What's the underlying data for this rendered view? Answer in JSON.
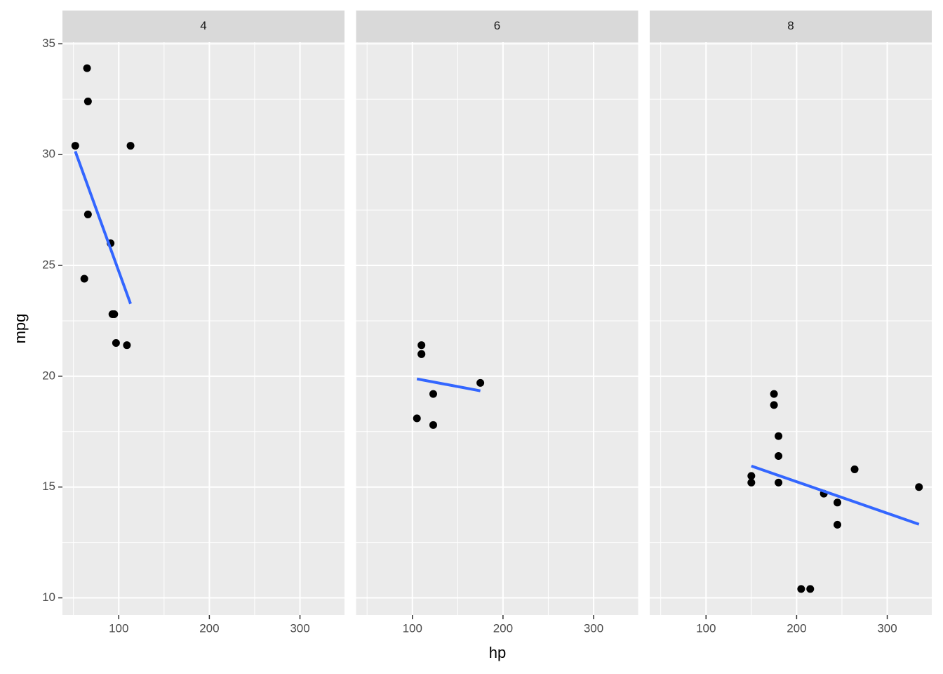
{
  "chart_data": {
    "type": "scatter",
    "x_label": "hp",
    "y_label": "mpg",
    "xlim": [
      37.85,
      349.15
    ],
    "ylim": [
      9.225,
      35.075
    ],
    "xticks": [
      100,
      200,
      300
    ],
    "yticks": [
      10,
      15,
      20,
      25,
      30,
      35
    ],
    "xminor": [
      50,
      150,
      250
    ],
    "yminor": [
      12.5,
      17.5,
      22.5,
      27.5,
      32.5
    ],
    "grid": true,
    "color": "#000000",
    "fit_color": "#3366ff",
    "panels": [
      {
        "title": "4",
        "x": [
          93,
          62,
          95,
          66,
          52,
          65,
          97,
          66,
          91,
          113,
          109
        ],
        "y": [
          22.8,
          24.4,
          22.8,
          32.4,
          30.4,
          33.9,
          21.5,
          27.3,
          26.0,
          30.4,
          21.4
        ],
        "fit": {
          "x": [
            52,
            113
          ],
          "y": [
            30.15,
            23.27
          ]
        }
      },
      {
        "title": "6",
        "x": [
          110,
          110,
          110,
          105,
          123,
          123,
          175
        ],
        "y": [
          21.0,
          21.0,
          21.4,
          18.1,
          19.2,
          17.8,
          19.7
        ],
        "fit": {
          "x": [
            105,
            175
          ],
          "y": [
            19.88,
            19.34
          ]
        }
      },
      {
        "title": "8",
        "x": [
          175,
          245,
          180,
          180,
          180,
          205,
          215,
          230,
          150,
          150,
          245,
          175,
          264,
          335
        ],
        "y": [
          18.7,
          14.3,
          16.4,
          17.3,
          15.2,
          10.4,
          10.4,
          14.7,
          15.5,
          15.2,
          13.3,
          19.2,
          15.8,
          15.0
        ],
        "fit": {
          "x": [
            150,
            335
          ],
          "y": [
            15.95,
            13.32
          ]
        }
      }
    ]
  }
}
